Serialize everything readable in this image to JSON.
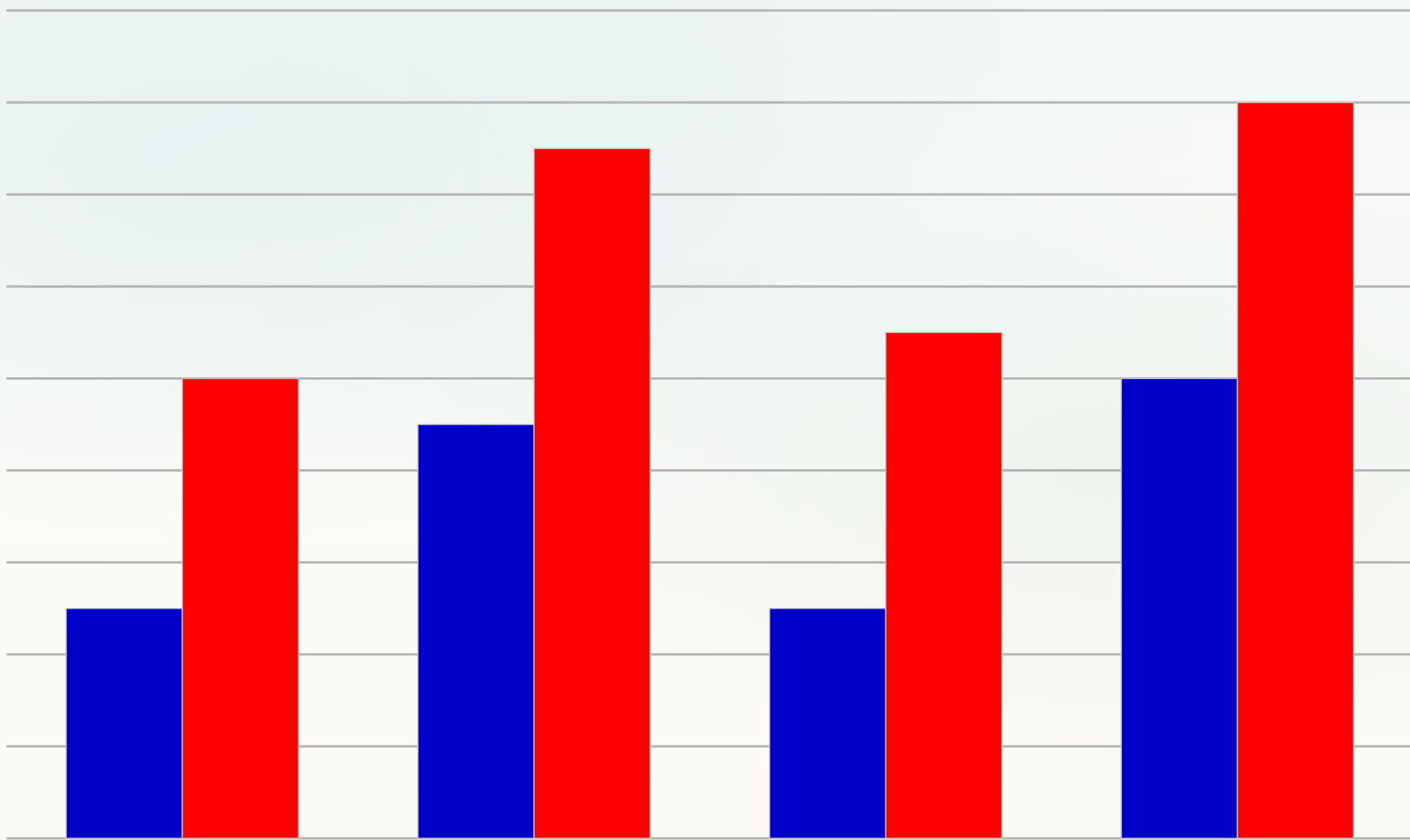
{
  "chart_data": {
    "type": "bar",
    "title": "",
    "xlabel": "",
    "ylabel": "",
    "categories": [
      "",
      "",
      "",
      ""
    ],
    "ylim": [
      0,
      9
    ],
    "grid": true,
    "legend": "none",
    "series": [
      {
        "color": "#0000c8",
        "values": [
          2.5,
          4.5,
          2.5,
          5
        ]
      },
      {
        "color": "#ff0000",
        "values": [
          5,
          7.5,
          5.5,
          8
        ]
      }
    ]
  },
  "colors": {
    "gridline": "#b5b5b5",
    "bar_border": "#c8c8c8"
  }
}
